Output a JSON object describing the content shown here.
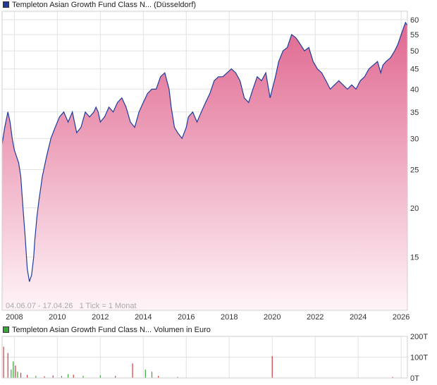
{
  "legend_main": {
    "label": "Templeton Asian Growth Fund Class N... (Düsseldorf)",
    "color": "#1f3c9c"
  },
  "legend_volume": {
    "label": "Templeton Asian Growth Fund Class N... Volumen in Euro",
    "color": "#3aa63a"
  },
  "range_caption": "04.06.07 - 17.04.26   1 Tick = 1 Monat",
  "colors": {
    "line": "#1f3c9c",
    "fill_top": "#e06890",
    "fill_bottom": "#fff4f8",
    "grid": "#e2e2e2",
    "volume_red": "#d23c3c",
    "volume_green": "#3aa63a"
  },
  "chart_data": [
    {
      "type": "area",
      "scale": "log",
      "grid": true,
      "xlim": [
        2007.43,
        2026.29
      ],
      "ylim": [
        11,
        63
      ],
      "x_ticks": [
        "2008",
        "2010",
        "2012",
        "2014",
        "2016",
        "2018",
        "2020",
        "2022",
        "2024",
        "2026"
      ],
      "y_ticks": [
        15,
        20,
        25,
        30,
        35,
        40,
        45,
        50,
        55,
        60
      ],
      "x": [
        2007.43,
        2007.55,
        2007.7,
        2007.8,
        2007.9,
        2008.0,
        2008.1,
        2008.2,
        2008.3,
        2008.4,
        2008.5,
        2008.6,
        2008.7,
        2008.8,
        2008.9,
        2008.95,
        2009.05,
        2009.15,
        2009.3,
        2009.5,
        2009.7,
        2009.9,
        2010.1,
        2010.3,
        2010.5,
        2010.7,
        2010.9,
        2011.1,
        2011.3,
        2011.5,
        2011.7,
        2011.8,
        2011.9,
        2012.0,
        2012.2,
        2012.4,
        2012.6,
        2012.8,
        2013.0,
        2013.2,
        2013.4,
        2013.6,
        2013.8,
        2014.0,
        2014.2,
        2014.4,
        2014.6,
        2014.8,
        2015.0,
        2015.2,
        2015.3,
        2015.45,
        2015.6,
        2015.8,
        2016.0,
        2016.1,
        2016.3,
        2016.5,
        2016.7,
        2016.9,
        2017.1,
        2017.3,
        2017.5,
        2017.7,
        2017.9,
        2018.1,
        2018.3,
        2018.5,
        2018.7,
        2018.9,
        2019.1,
        2019.3,
        2019.5,
        2019.7,
        2019.9,
        2020.05,
        2020.15,
        2020.3,
        2020.5,
        2020.7,
        2020.9,
        2021.1,
        2021.3,
        2021.5,
        2021.7,
        2021.9,
        2022.1,
        2022.3,
        2022.5,
        2022.7,
        2022.9,
        2023.1,
        2023.3,
        2023.5,
        2023.7,
        2023.9,
        2024.1,
        2024.3,
        2024.5,
        2024.7,
        2024.9,
        2025.05,
        2025.15,
        2025.3,
        2025.5,
        2025.7,
        2025.85,
        2026.0,
        2026.1,
        2026.2,
        2026.29
      ],
      "y": [
        29,
        32,
        35,
        33,
        30,
        28,
        27,
        26,
        24,
        20,
        17,
        14,
        13,
        13.5,
        15,
        16.5,
        19,
        21,
        24,
        27,
        30,
        32,
        34,
        35,
        33,
        35,
        31,
        32,
        35,
        34,
        35,
        36,
        35,
        33,
        34,
        36,
        35,
        37,
        38,
        36,
        33,
        32,
        35,
        37,
        39,
        40,
        40,
        43,
        44,
        40,
        36,
        32,
        31,
        30,
        32,
        34,
        35,
        33,
        35,
        37,
        39,
        42,
        43,
        43,
        44,
        45,
        44,
        42,
        38,
        37,
        40,
        43,
        42,
        44,
        38,
        41,
        43,
        47,
        50,
        51,
        55,
        54,
        52,
        50,
        51,
        47,
        45,
        44,
        42,
        40,
        41,
        42,
        41,
        40,
        41,
        40,
        42,
        43,
        45,
        46,
        47,
        44,
        46,
        47,
        48,
        50,
        52,
        55,
        57,
        59,
        58
      ]
    },
    {
      "type": "bar",
      "name": "Volumen in Euro",
      "ylim": [
        0,
        200
      ],
      "y_ticks": [
        "0T",
        "100T",
        "200T"
      ],
      "bars": [
        {
          "x": 2007.5,
          "value": 150,
          "color": "red"
        },
        {
          "x": 2007.7,
          "value": 120,
          "color": "red"
        },
        {
          "x": 2007.85,
          "value": 40,
          "color": "green"
        },
        {
          "x": 2007.95,
          "value": 80,
          "color": "green"
        },
        {
          "x": 2008.05,
          "value": 60,
          "color": "red"
        },
        {
          "x": 2008.15,
          "value": 30,
          "color": "green"
        },
        {
          "x": 2008.3,
          "value": 25,
          "color": "red"
        },
        {
          "x": 2008.6,
          "value": 15,
          "color": "red"
        },
        {
          "x": 2009.0,
          "value": 10,
          "color": "green"
        },
        {
          "x": 2009.4,
          "value": 8,
          "color": "red"
        },
        {
          "x": 2009.8,
          "value": 12,
          "color": "red"
        },
        {
          "x": 2010.2,
          "value": 10,
          "color": "green"
        },
        {
          "x": 2010.5,
          "value": 18,
          "color": "green"
        },
        {
          "x": 2010.75,
          "value": 15,
          "color": "red"
        },
        {
          "x": 2011.2,
          "value": 10,
          "color": "green"
        },
        {
          "x": 2012.0,
          "value": 12,
          "color": "green"
        },
        {
          "x": 2012.7,
          "value": 10,
          "color": "red"
        },
        {
          "x": 2013.5,
          "value": 70,
          "color": "red"
        },
        {
          "x": 2014.1,
          "value": 40,
          "color": "green"
        },
        {
          "x": 2014.4,
          "value": 30,
          "color": "green"
        },
        {
          "x": 2014.7,
          "value": 10,
          "color": "red"
        },
        {
          "x": 2015.6,
          "value": 5,
          "color": "green"
        },
        {
          "x": 2020.0,
          "value": 105,
          "color": "red"
        },
        {
          "x": 2025.6,
          "value": 5,
          "color": "red"
        }
      ]
    }
  ]
}
